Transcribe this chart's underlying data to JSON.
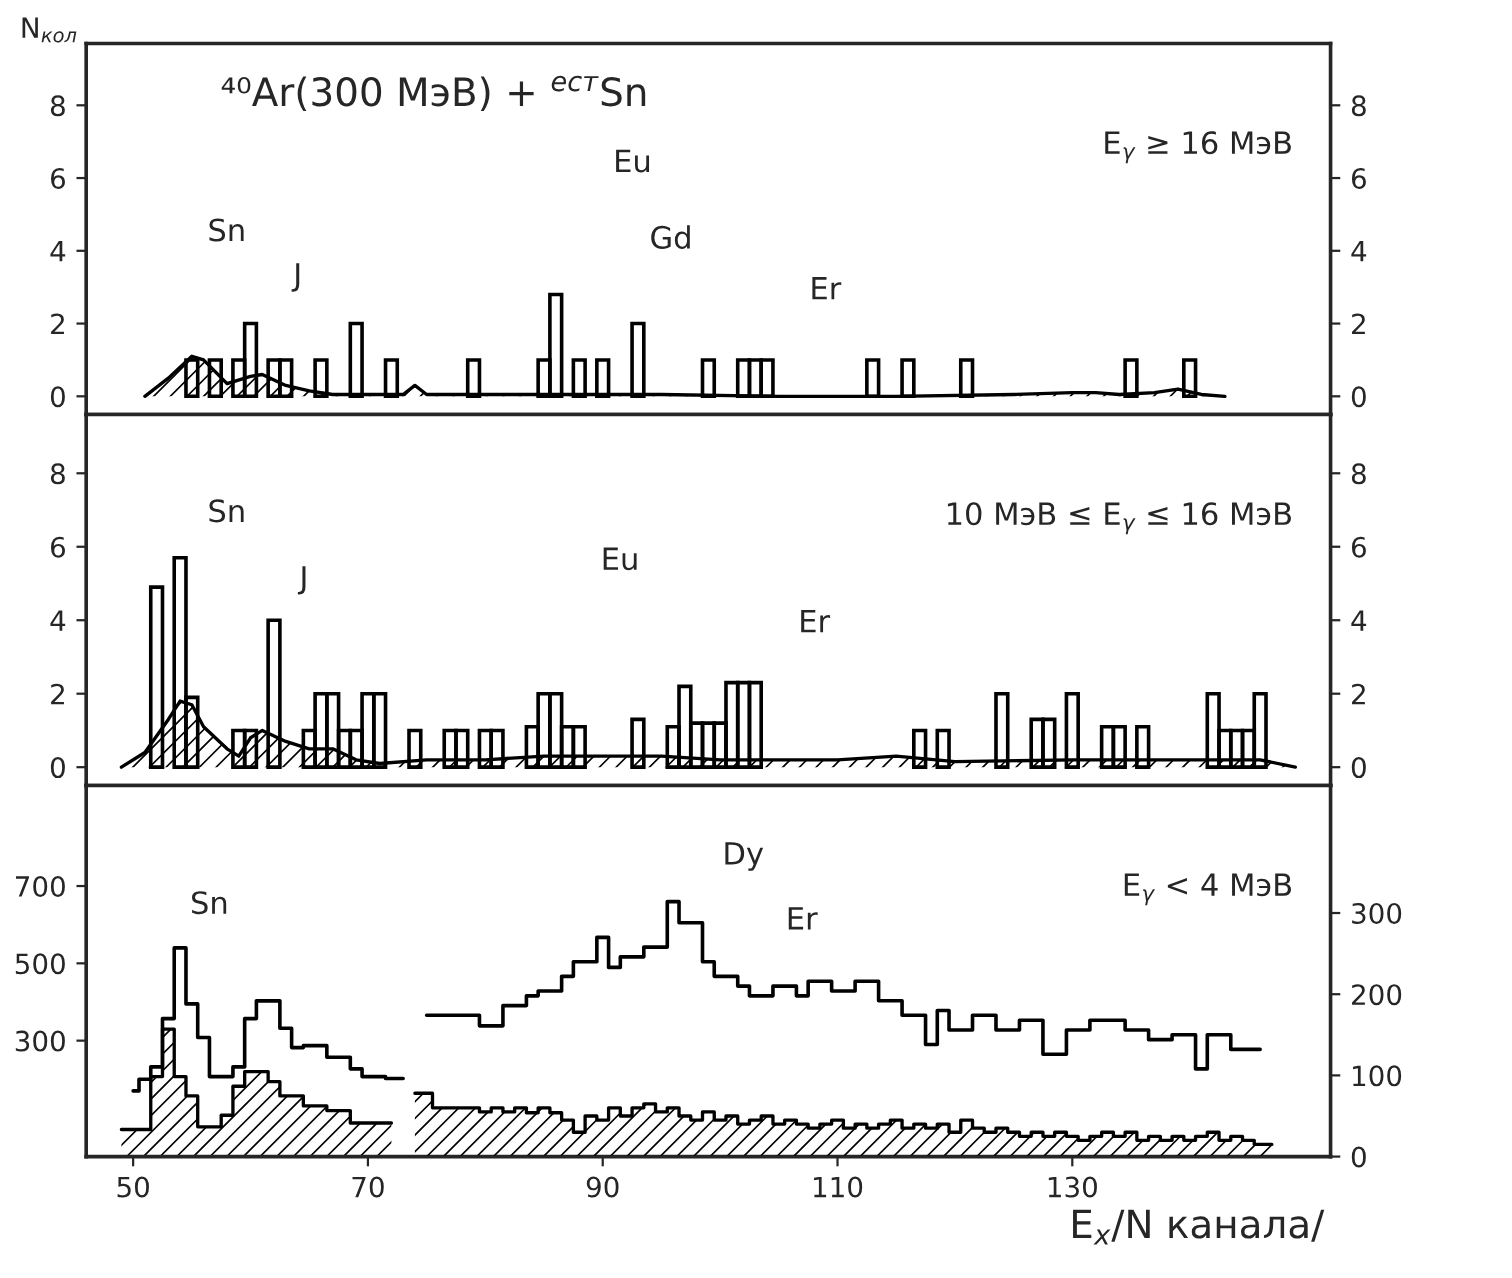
{
  "chart_data": [
    {
      "type": "bar",
      "title": "⁴⁰Ar(300 МэВ) + $^{ест}$Sn",
      "ylabel": "N$_{кол}$",
      "xlim": [
        46,
        152
      ],
      "xticks": [
        50,
        70,
        90,
        110,
        130
      ],
      "ylim": [
        -0.5,
        9.7
      ],
      "yticks": [
        0,
        2,
        4,
        6,
        8
      ],
      "y2lim": [
        -0.5,
        9.7
      ],
      "y2ticks": [
        0,
        2,
        4,
        6,
        8
      ],
      "tick_labels": "y",
      "annotations": [
        "E$_{γ}$ ≥ 16 МэВ",
        "Sn",
        "J",
        "Eu",
        "Gd",
        "Er"
      ],
      "series": [
        {
          "type": "bar",
          "color": "#000000",
          "x": [
            55,
            57,
            59,
            60,
            62,
            63,
            66,
            69,
            72,
            79,
            85,
            86,
            88,
            90,
            93,
            99,
            102,
            103,
            104,
            113,
            116,
            121,
            135,
            140
          ],
          "values": [
            1,
            1,
            1,
            2,
            1,
            1,
            1,
            2,
            1,
            1,
            1,
            2.8,
            1,
            1,
            2,
            1,
            1,
            1,
            1,
            1,
            1,
            1,
            1,
            1
          ]
        },
        {
          "type": "area",
          "color": "#000000",
          "x": [
            51,
            53,
            55,
            56,
            58,
            60,
            61,
            63,
            65,
            67,
            70,
            73,
            74,
            75,
            77,
            85,
            95,
            105,
            115,
            125,
            130,
            132,
            134,
            137,
            139,
            141,
            143
          ],
          "values": [
            0,
            0.5,
            1.1,
            1.0,
            0.35,
            0.55,
            0.6,
            0.3,
            0.15,
            0.05,
            0.05,
            0.05,
            0.3,
            0.05,
            0.05,
            0.05,
            0.05,
            0,
            0,
            0.05,
            0.1,
            0.1,
            0.05,
            0.1,
            0.2,
            0.05,
            0
          ]
        }
      ]
    },
    {
      "type": "bar",
      "xlim": [
        46,
        152
      ],
      "xticks": [
        50,
        70,
        90,
        110,
        130
      ],
      "ylim": [
        -0.5,
        9.6
      ],
      "yticks": [
        0,
        2,
        4,
        6,
        8
      ],
      "y2lim": [
        -0.5,
        9.6
      ],
      "y2ticks": [
        0,
        2,
        4,
        6,
        8
      ],
      "tick_labels": "y",
      "annotations": [
        "10 МэВ ≤ E$_{γ}$ ≤ 16 МэВ",
        "Sn",
        "J",
        "Eu",
        "Er"
      ],
      "series": [
        {
          "type": "bar",
          "color": "#000000",
          "x": [
            52,
            54,
            55,
            59,
            60,
            62,
            65,
            66,
            67,
            68,
            69,
            70,
            71,
            74,
            77,
            78,
            80,
            81,
            84,
            85,
            86,
            87,
            88,
            93,
            96,
            97,
            98,
            99,
            100,
            101,
            102,
            103,
            117,
            119,
            124,
            127,
            128,
            130,
            133,
            134,
            136,
            142,
            143,
            144,
            145,
            146
          ],
          "values": [
            4.9,
            5.7,
            1.9,
            1,
            1,
            4,
            1,
            2,
            2,
            1,
            1,
            2,
            2,
            1,
            1,
            1,
            1,
            1,
            1.1,
            2,
            2,
            1.1,
            1.1,
            1.3,
            1.1,
            2.2,
            1.2,
            1.2,
            1.2,
            2.3,
            2.3,
            2.3,
            1,
            1,
            2,
            1.3,
            1.3,
            2,
            1.1,
            1.1,
            1.1,
            2,
            1,
            1,
            1,
            2
          ]
        },
        {
          "type": "area",
          "color": "#000000",
          "x": [
            49,
            51,
            53,
            54,
            55,
            56,
            58,
            59,
            60,
            61,
            63,
            65,
            67,
            69,
            71,
            75,
            80,
            85,
            95,
            100,
            110,
            115,
            120,
            130,
            140,
            146,
            149
          ],
          "values": [
            0,
            0.4,
            1.3,
            1.8,
            1.7,
            1.1,
            0.5,
            0.3,
            0.8,
            1,
            0.7,
            0.5,
            0.5,
            0.2,
            0.1,
            0.2,
            0.2,
            0.3,
            0.3,
            0.2,
            0.2,
            0.3,
            0.15,
            0.2,
            0.2,
            0.2,
            0
          ]
        }
      ]
    },
    {
      "type": "step",
      "xlabel": "E$_{x}$/N канала/",
      "xlim": [
        46,
        152
      ],
      "xticks": [
        50,
        70,
        90,
        110,
        130
      ],
      "ylim": [
        0,
        960
      ],
      "yticks": [
        300,
        500,
        700
      ],
      "y2lim": [
        0,
        457
      ],
      "y2ticks": [
        0,
        100,
        200,
        300
      ],
      "annotations": [
        "E$_{γ}$ < 4 МэВ",
        "Sn",
        "Dy",
        "Er"
      ],
      "series": [
        {
          "type": "step",
          "color": "#000000",
          "x": [
            50,
            51,
            52,
            53,
            54,
            55,
            56,
            57,
            58,
            59,
            60,
            61,
            62,
            63,
            64,
            65,
            66,
            67,
            68,
            69,
            70,
            71,
            72,
            73
          ],
          "values": [
            170,
            200,
            232,
            357,
            540,
            395,
            308,
            207,
            207,
            232,
            357,
            403,
            403,
            332,
            282,
            287,
            287,
            257,
            257,
            227,
            207,
            207,
            202,
            202
          ]
        },
        {
          "type": "area",
          "color": "#000000",
          "x": [
            49,
            50,
            51,
            52,
            53,
            54,
            55,
            56,
            57,
            58,
            59,
            60,
            61,
            62,
            63,
            64,
            65,
            66,
            67,
            68,
            69,
            70,
            71,
            72
          ],
          "values": [
            70,
            70,
            70,
            207,
            330,
            207,
            157,
            77,
            77,
            107,
            182,
            220,
            220,
            194,
            157,
            157,
            131,
            131,
            119,
            119,
            87,
            87,
            87,
            87
          ]
        },
        {
          "type": "step",
          "axis": "y2",
          "color": "#000000",
          "x": [
            75,
            76,
            77,
            78,
            79,
            80,
            81,
            82,
            83,
            84,
            85,
            86,
            87,
            88,
            89,
            90,
            91,
            92,
            93,
            94,
            95,
            96,
            97,
            98,
            99,
            100,
            101,
            102,
            103,
            104,
            105,
            106,
            107,
            108,
            109,
            110,
            111,
            112,
            113,
            114,
            115,
            116,
            117,
            118,
            119,
            120,
            121,
            122,
            123,
            124,
            125,
            126,
            127,
            128,
            129,
            130,
            131,
            132,
            133,
            134,
            135,
            136,
            137,
            138,
            139,
            140,
            141,
            142,
            143,
            144,
            145,
            146
          ],
          "values": [
            174,
            174,
            174,
            174,
            174,
            161,
            161,
            186,
            186,
            198,
            204,
            204,
            222,
            240,
            240,
            270,
            233,
            246,
            246,
            258,
            258,
            314,
            288,
            288,
            240,
            222,
            222,
            210,
            198,
            198,
            210,
            210,
            198,
            216,
            216,
            204,
            204,
            216,
            216,
            192,
            192,
            174,
            174,
            138,
            180,
            156,
            156,
            174,
            174,
            156,
            156,
            168,
            168,
            126,
            126,
            156,
            156,
            168,
            168,
            168,
            156,
            156,
            144,
            144,
            150,
            150,
            108,
            150,
            150,
            132,
            132,
            132
          ]
        },
        {
          "type": "area",
          "axis": "y2",
          "color": "#000000",
          "x": [
            74,
            75,
            76,
            77,
            78,
            79,
            80,
            81,
            82,
            83,
            84,
            85,
            86,
            87,
            88,
            89,
            90,
            91,
            92,
            93,
            94,
            95,
            96,
            97,
            98,
            99,
            100,
            101,
            102,
            103,
            104,
            105,
            106,
            107,
            108,
            109,
            110,
            111,
            112,
            113,
            114,
            115,
            116,
            117,
            118,
            119,
            120,
            121,
            122,
            123,
            124,
            125,
            126,
            127,
            128,
            129,
            130,
            131,
            132,
            133,
            134,
            135,
            136,
            137,
            138,
            139,
            140,
            141,
            142,
            143,
            144,
            145,
            146,
            147
          ],
          "values": [
            78,
            78,
            60,
            60,
            60,
            60,
            55,
            60,
            55,
            60,
            54,
            60,
            54,
            45,
            30,
            50,
            45,
            60,
            50,
            60,
            65,
            55,
            60,
            50,
            45,
            55,
            45,
            50,
            40,
            45,
            50,
            40,
            45,
            40,
            35,
            40,
            45,
            35,
            40,
            35,
            40,
            45,
            35,
            40,
            35,
            40,
            30,
            45,
            35,
            30,
            35,
            30,
            25,
            30,
            25,
            30,
            25,
            20,
            25,
            30,
            25,
            30,
            20,
            25,
            20,
            25,
            20,
            25,
            30,
            20,
            25,
            20,
            15,
            15
          ]
        }
      ]
    }
  ]
}
